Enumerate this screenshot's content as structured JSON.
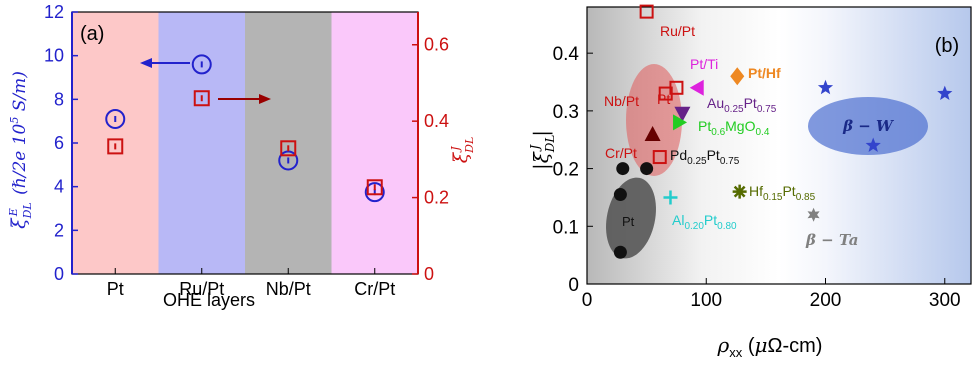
{
  "chart_data": [
    {
      "panel_label": "(a)",
      "type": "scatter",
      "categories": [
        "Pt",
        "Ru/Pt",
        "Nb/Pt",
        "Cr/Pt"
      ],
      "xlabel": "OHE layers",
      "ylabel_left": "ξ^E_DL (ℏ/2e 10^5 S/m)",
      "ylabel_right": "ξ^J_DL",
      "ylim_left": [
        0,
        12
      ],
      "ylim_right": [
        0,
        0.6857
      ],
      "yticks_left": [
        "0",
        "2",
        "4",
        "6",
        "8",
        "10",
        "12"
      ],
      "yticks_right": [
        "0",
        "0.2",
        "0.4",
        "0.6"
      ],
      "band_colors": [
        "#fdc8c8",
        "#b8b8f6",
        "#b4b4b4",
        "#fac8fa"
      ],
      "series": [
        {
          "axis": "left",
          "marker": "circle",
          "color": "#2222cc",
          "values": [
            7.1,
            9.6,
            5.2,
            3.75
          ]
        },
        {
          "axis": "right",
          "marker": "square",
          "color": "#cc1111",
          "values": [
            0.334,
            0.46,
            0.329,
            0.227
          ]
        }
      ]
    },
    {
      "panel_label": "(b)",
      "type": "scatter",
      "xlabel": "ρxx (μΩ-cm)",
      "ylabel": "|ξ^J_DL|",
      "xlim": [
        0,
        322
      ],
      "ylim": [
        0,
        0.48
      ],
      "xticks": [
        "0",
        "100",
        "200",
        "300"
      ],
      "yticks": [
        "0",
        "0.1",
        "0.2",
        "0.3",
        "0.4"
      ],
      "points": [
        {
          "label": "Ru/Pt",
          "x": 50,
          "y": 0.472,
          "marker": "square-open",
          "color": "#cc1111"
        },
        {
          "label": "Pt",
          "x": 75,
          "y": 0.34,
          "marker": "square-open",
          "color": "#cc1111"
        },
        {
          "label": "Nb/Pt",
          "x": 66,
          "y": 0.33,
          "marker": "square-open",
          "color": "#cc1111"
        },
        {
          "label": "Cr/Pt",
          "x": 61,
          "y": 0.22,
          "marker": "square-open",
          "color": "#cc1111"
        },
        {
          "label": "Pt/Ti",
          "x": 92,
          "y": 0.34,
          "marker": "triangle-left",
          "color": "#dd22dd"
        },
        {
          "label": "Pt/Hf",
          "x": 126,
          "y": 0.36,
          "marker": "diamond",
          "color": "#ee8822"
        },
        {
          "label": "Au0.25Pt0.75",
          "x": 80,
          "y": 0.295,
          "marker": "triangle-down",
          "color": "#662288"
        },
        {
          "label": "Pt0.6MgO0.4",
          "x": 78,
          "y": 0.28,
          "marker": "triangle-right",
          "color": "#22cc22"
        },
        {
          "label": "Pd0.25Pt0.75",
          "x": 55,
          "y": 0.26,
          "marker": "triangle-up",
          "color": "#660000"
        },
        {
          "label": "Al0.20Pt0.80",
          "x": 70,
          "y": 0.15,
          "marker": "plus",
          "color": "#22cccc"
        },
        {
          "label": "Hf0.15Pt0.85",
          "x": 128,
          "y": 0.16,
          "marker": "asterisk",
          "color": "#556b00"
        },
        {
          "label": "β-Ta",
          "x": 190,
          "y": 0.12,
          "marker": "hexagram",
          "color": "#808080"
        }
      ],
      "pt_points": {
        "label": "Pt",
        "marker": "circle-filled",
        "color": "#111111",
        "x": [
          30,
          50,
          28,
          28
        ],
        "y": [
          0.2,
          0.2,
          0.155,
          0.055
        ]
      },
      "w_points": {
        "label": "β-W",
        "marker": "star",
        "color": "#3344cc",
        "x": [
          200,
          240,
          300
        ],
        "y": [
          0.34,
          0.24,
          0.33
        ]
      },
      "labels_text": {
        "ru_pt": "Ru/Pt",
        "pt": "Pt",
        "nb_pt": "Nb/Pt",
        "cr_pt": "Cr/Pt",
        "pt_ti": "Pt/Ti",
        "pt_hf": "Pt/Hf",
        "au_main": "Au",
        "au_sub1": "0.25",
        "au_mid": "Pt",
        "au_sub2": "0.75",
        "mg_main": "Pt",
        "mg_sub1": "0.6",
        "mg_mid": "MgO",
        "mg_sub2": "0.4",
        "pd_main": "Pd",
        "pd_sub1": "0.25",
        "pd_mid": "Pt",
        "pd_sub2": "0.75",
        "al_main": "Al",
        "al_sub1": "0.20",
        "al_mid": "Pt",
        "al_sub2": "0.80",
        "hf_main": "Hf",
        "hf_sub1": "0.15",
        "hf_mid": "Pt",
        "hf_sub2": "0.85",
        "beta_w": "β − W",
        "beta_ta": "β − Ta",
        "pt_cluster": "Pt"
      }
    }
  ]
}
